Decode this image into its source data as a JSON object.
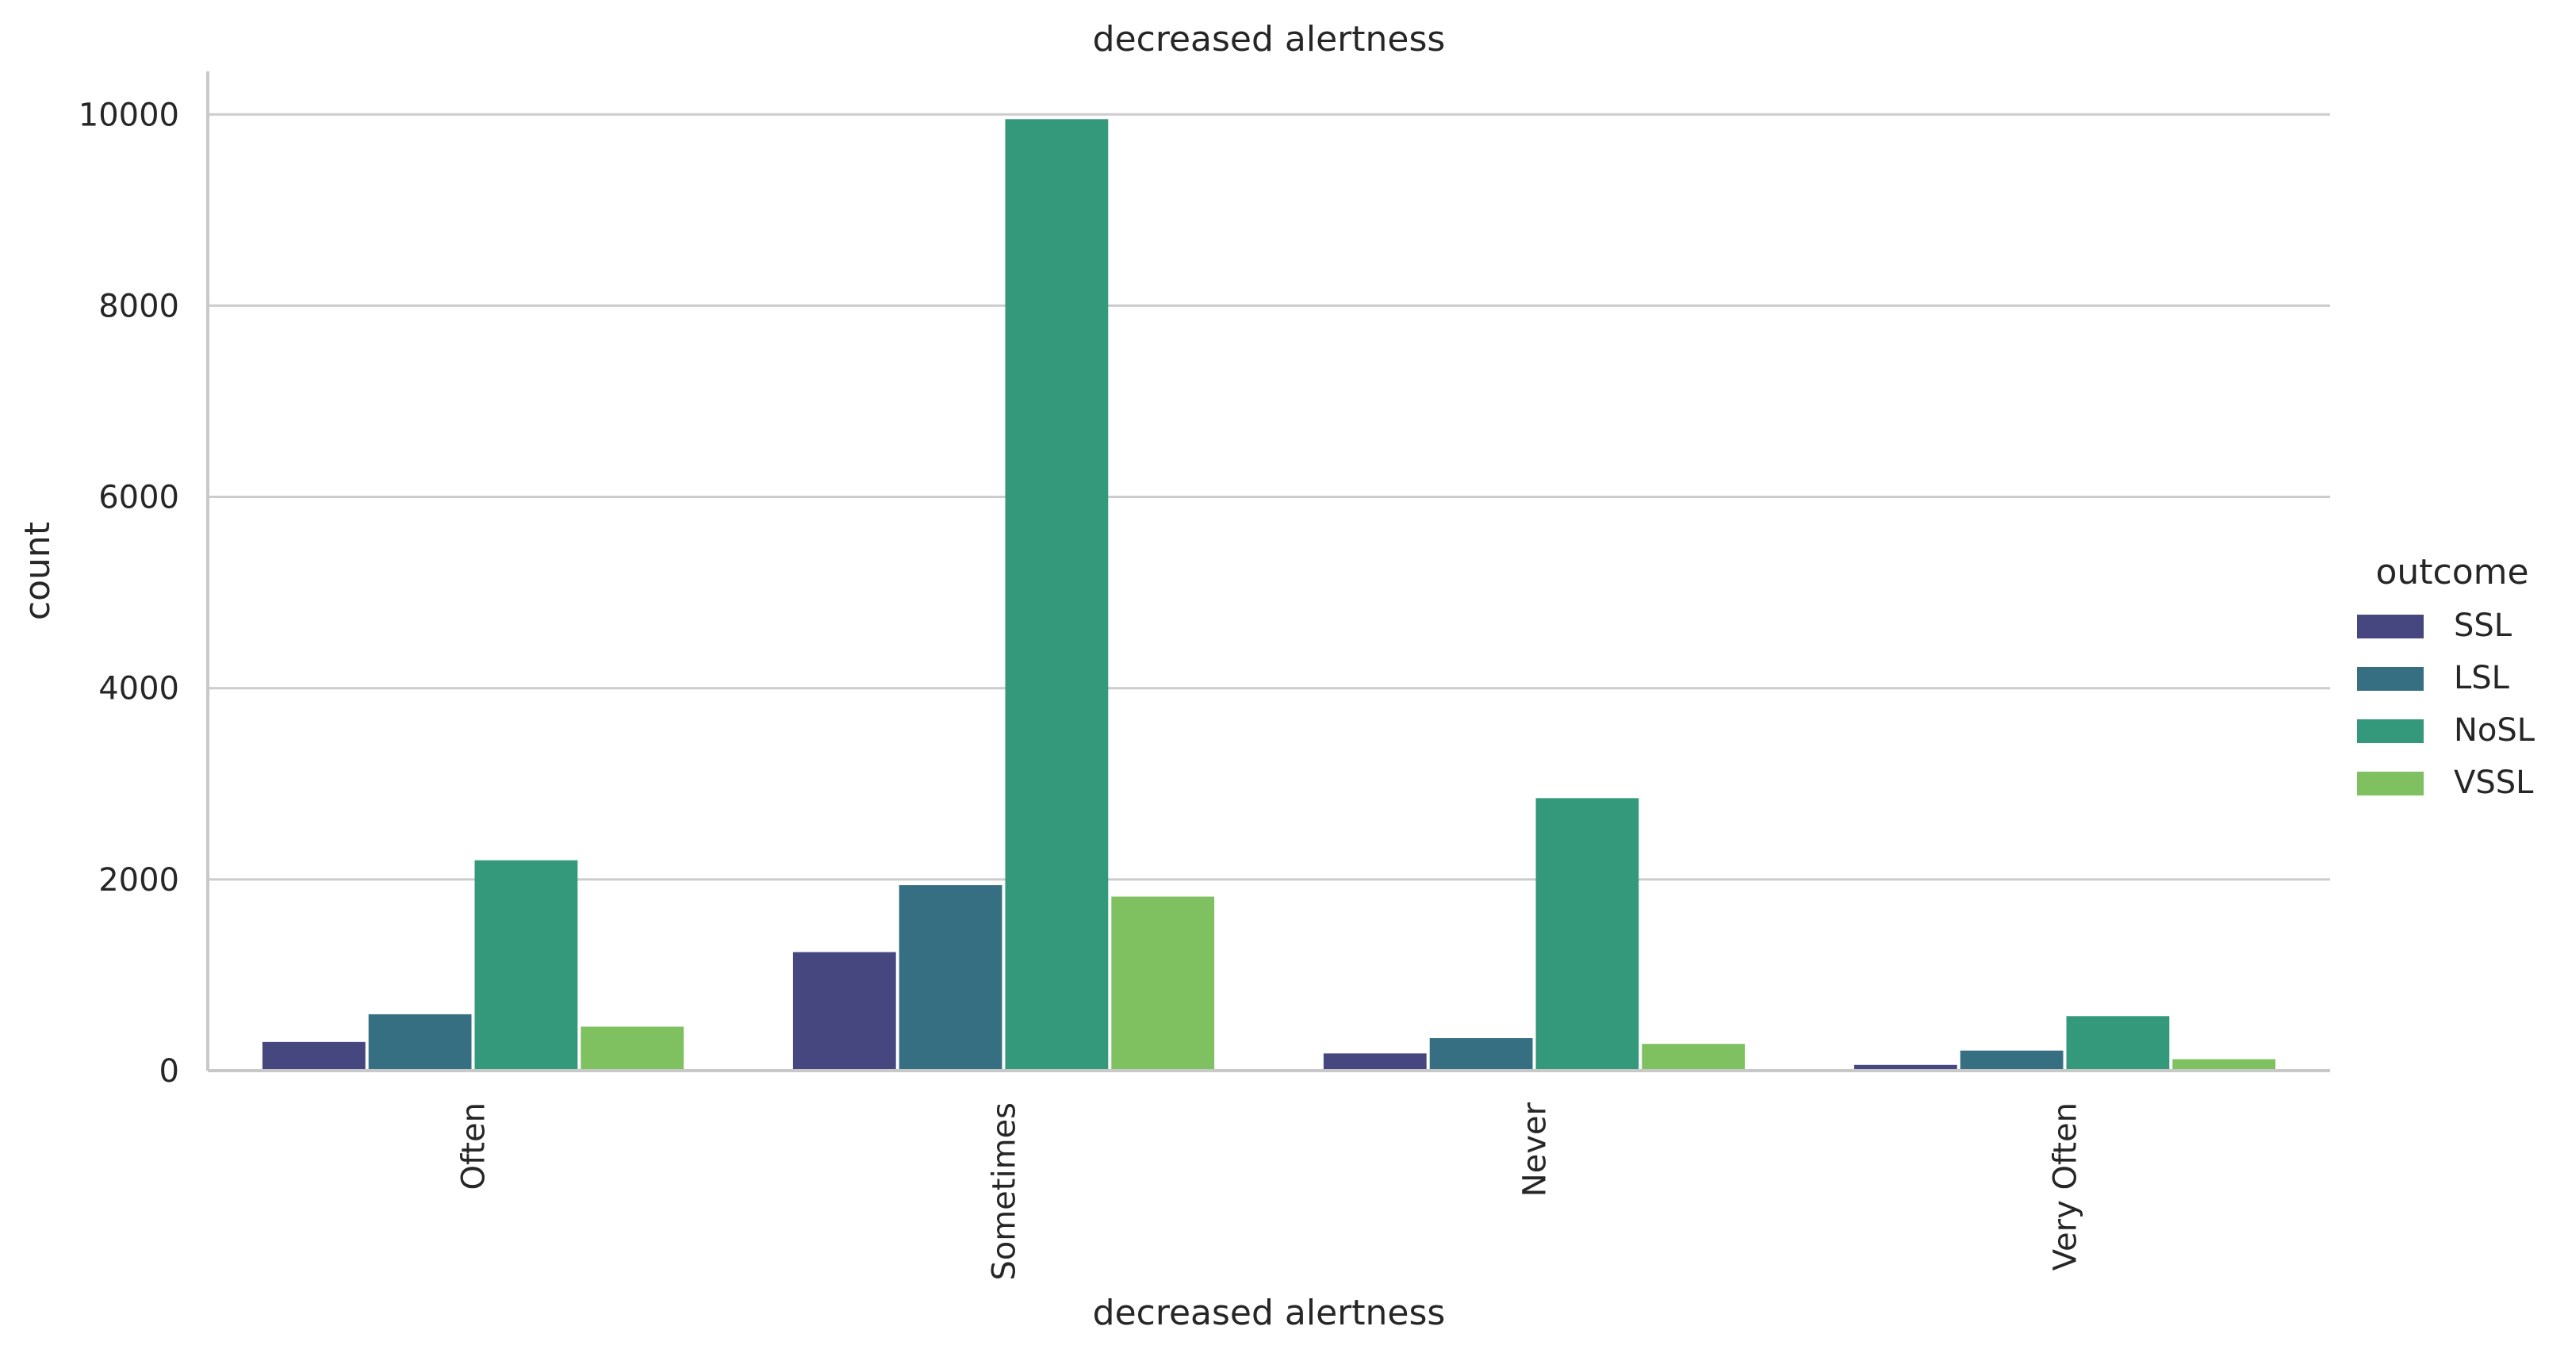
{
  "chart_data": {
    "type": "bar",
    "title": "decreased alertness",
    "xlabel": "decreased alertness",
    "ylabel": "count",
    "categories": [
      "Often",
      "Sometimes",
      "Never",
      "Very Often"
    ],
    "series": [
      {
        "name": "SSL",
        "color": "#46477f",
        "values": [
          300,
          1240,
          180,
          60
        ]
      },
      {
        "name": "LSL",
        "color": "#366f82",
        "values": [
          590,
          1940,
          340,
          210
        ]
      },
      {
        "name": "NoSL",
        "color": "#34997b",
        "values": [
          2200,
          9950,
          2850,
          570
        ]
      },
      {
        "name": "VSSL",
        "color": "#7fc161",
        "values": [
          460,
          1820,
          280,
          120
        ]
      }
    ],
    "yticks": [
      0,
      2000,
      4000,
      6000,
      8000,
      10000
    ],
    "ylim": [
      0,
      10450
    ],
    "grid": "horizontal",
    "legend": {
      "title": "outcome",
      "placement": "right"
    }
  }
}
